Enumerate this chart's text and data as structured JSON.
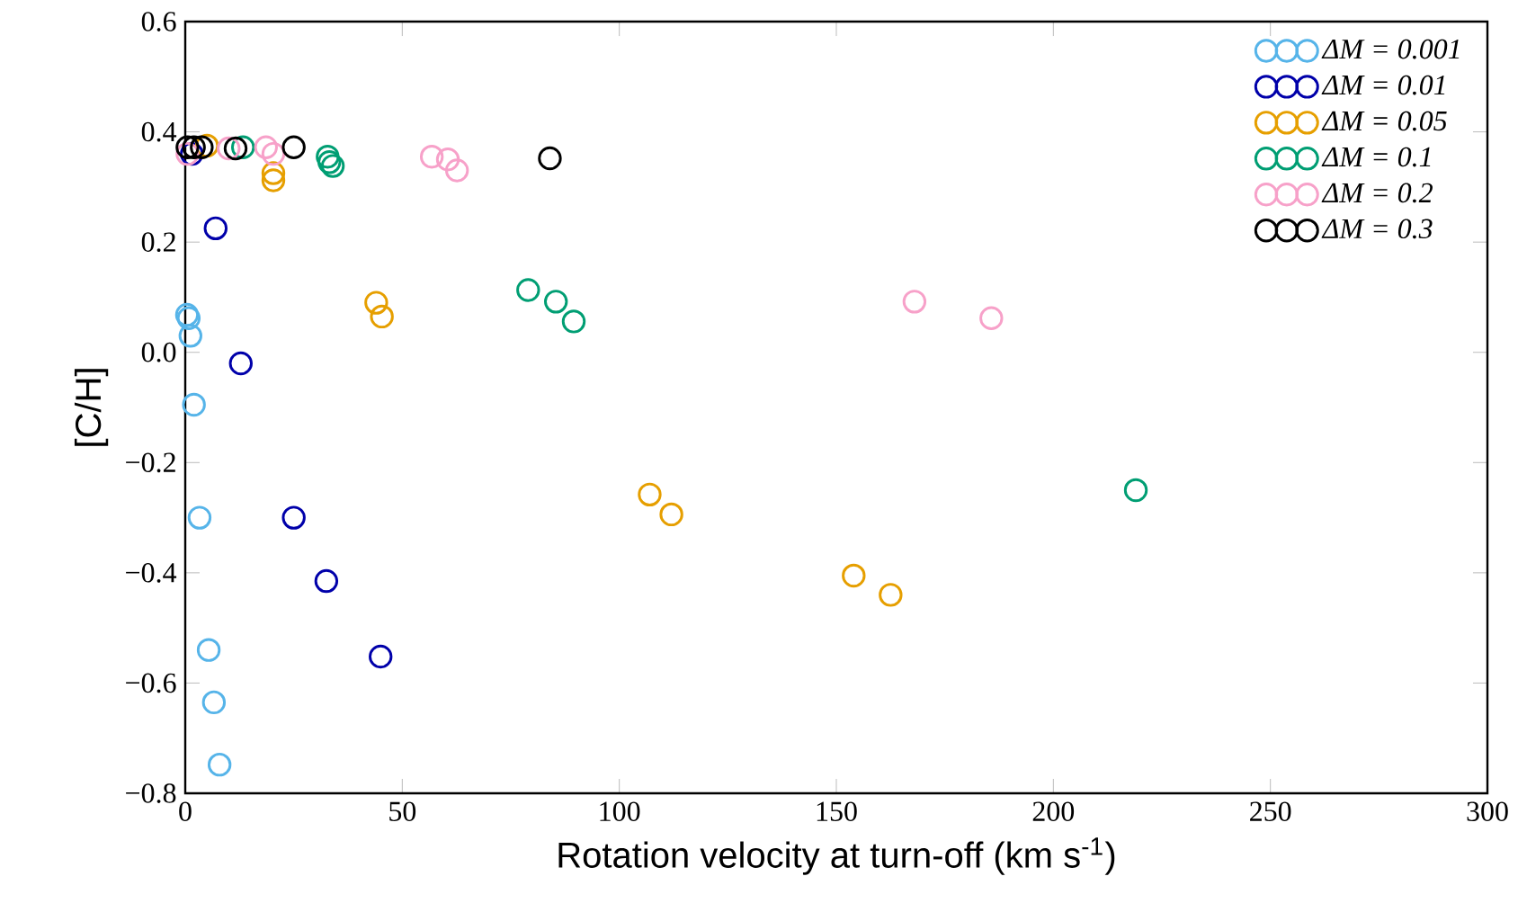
{
  "chart_data": {
    "type": "scatter",
    "xlabel": "Rotation velocity at turn-off (km s$^{-1}$)",
    "ylabel": "[C/H]",
    "xlim": [
      0,
      300
    ],
    "ylim": [
      -0.8,
      0.6
    ],
    "xticks": [
      0,
      50,
      100,
      150,
      200,
      250,
      300
    ],
    "yticks": [
      {
        "value": -0.8,
        "label": "−0.8"
      },
      {
        "value": -0.6,
        "label": "−0.6"
      },
      {
        "value": -0.4,
        "label": "−0.4"
      },
      {
        "value": -0.2,
        "label": "−0.2"
      },
      {
        "value": 0,
        "label": "0.0"
      },
      {
        "value": 0.2,
        "label": "0.2"
      },
      {
        "value": 0.4,
        "label": "0.4"
      },
      {
        "value": 0.6,
        "label": "0.6"
      }
    ],
    "marker": "circle",
    "legend": "top right",
    "series": [
      {
        "name": "ΔM = 0.001",
        "color": "#56b4e9",
        "x": [
          0.4,
          0.8,
          1.2,
          2,
          3.3,
          5.4,
          6.6,
          7.9
        ],
        "values": [
          0.068,
          0.062,
          0.03,
          -0.095,
          -0.3,
          -0.54,
          -0.635,
          -0.748
        ]
      },
      {
        "name": "ΔM = 0.01",
        "color": "#0000aa",
        "x": [
          1.5,
          7,
          12.8,
          25,
          32.5,
          45
        ],
        "values": [
          0.36,
          0.225,
          -0.02,
          -0.3,
          -0.415,
          -0.552
        ]
      },
      {
        "name": "ΔM = 0.05",
        "color": "#e69f00",
        "x": [
          5,
          20.3,
          20.3,
          44,
          45.3,
          107,
          112,
          154,
          162.5
        ],
        "values": [
          0.375,
          0.325,
          0.312,
          0.09,
          0.065,
          -0.258,
          -0.294,
          -0.405,
          -0.44
        ]
      },
      {
        "name": "ΔM = 0.1",
        "color": "#009e73",
        "x": [
          13.3,
          32.8,
          33.2,
          34,
          79,
          85.4,
          89.5,
          219
        ],
        "values": [
          0.372,
          0.355,
          0.345,
          0.338,
          0.113,
          0.092,
          0.056,
          -0.25
        ]
      },
      {
        "name": "ΔM = 0.2",
        "color": "#f7a1c9",
        "x": [
          0.5,
          10,
          18.6,
          20.3,
          56.8,
          60.5,
          62.6,
          168,
          185.7
        ],
        "values": [
          0.36,
          0.37,
          0.372,
          0.36,
          0.355,
          0.35,
          0.33,
          0.092,
          0.062
        ]
      },
      {
        "name": "ΔM = 0.3",
        "color": "#000000",
        "x": [
          0.5,
          2,
          3.8,
          11.6,
          25,
          84
        ],
        "values": [
          0.372,
          0.372,
          0.372,
          0.37,
          0.372,
          0.352
        ]
      }
    ]
  }
}
